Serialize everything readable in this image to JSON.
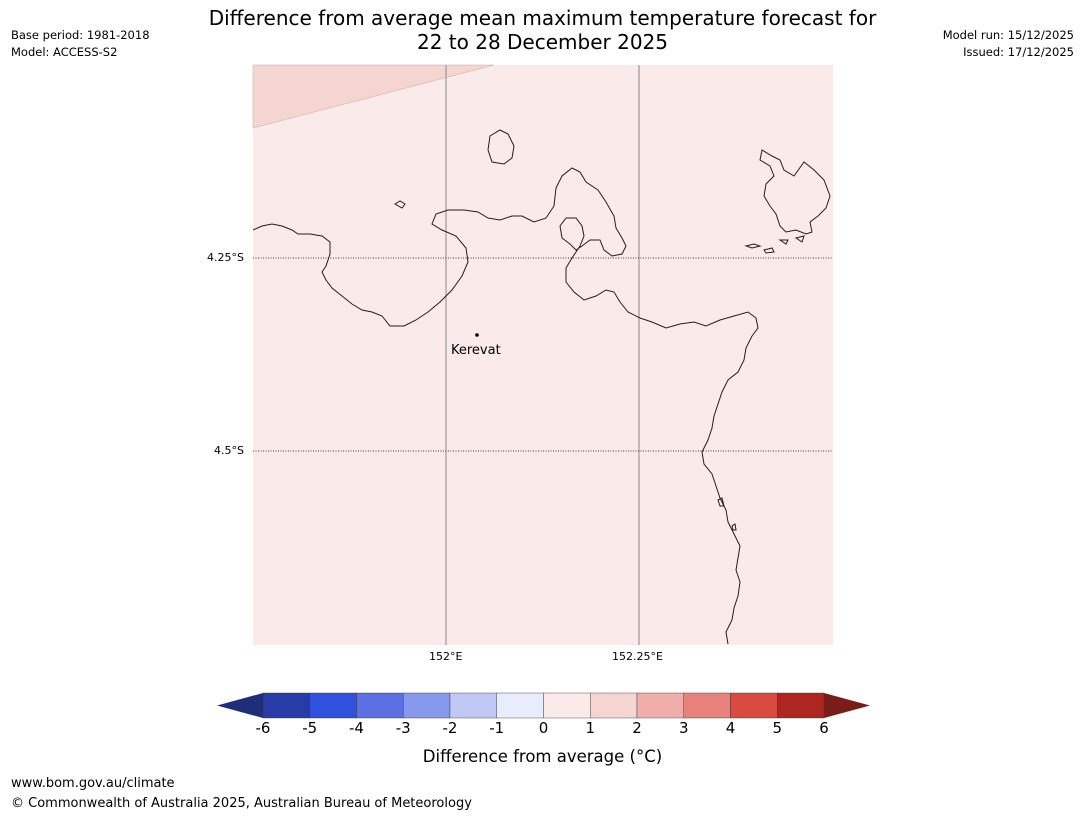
{
  "meta": {
    "base_period": "Base period: 1981-2018",
    "model": "Model: ACCESS-S2",
    "model_run": "Model run: 15/12/2025",
    "issued": "Issued: 17/12/2025"
  },
  "title": {
    "line1": "Difference from average mean maximum temperature forecast for",
    "line2": "22 to 28 December 2025"
  },
  "map": {
    "lat_labels": [
      "4.25°S",
      "4.5°S"
    ],
    "lon_labels": [
      "152°E",
      "152.25°E"
    ],
    "place": "Kerevat",
    "fill_colors": {
      "main": "#fbeaea",
      "corner": "#f4d5d2"
    }
  },
  "colorbar": {
    "ticks": [
      "-6",
      "-5",
      "-4",
      "-3",
      "-2",
      "-1",
      "0",
      "1",
      "2",
      "3",
      "4",
      "5",
      "6"
    ],
    "colors": [
      "#283ca8",
      "#3050dd",
      "#5a70e3",
      "#8799ec",
      "#c0c8f5",
      "#e9ecfc",
      "#fbeaea",
      "#f4d5d2",
      "#efaeaa",
      "#e6817c",
      "#d94a40",
      "#ad2720"
    ],
    "under_color": "#1e2e7a",
    "over_color": "#7a1c17",
    "label": "Difference from average (°C)"
  },
  "footer": {
    "url": "www.bom.gov.au/climate",
    "copyright": "© Commonwealth of Australia 2025, Australian Bureau of Meteorology"
  }
}
